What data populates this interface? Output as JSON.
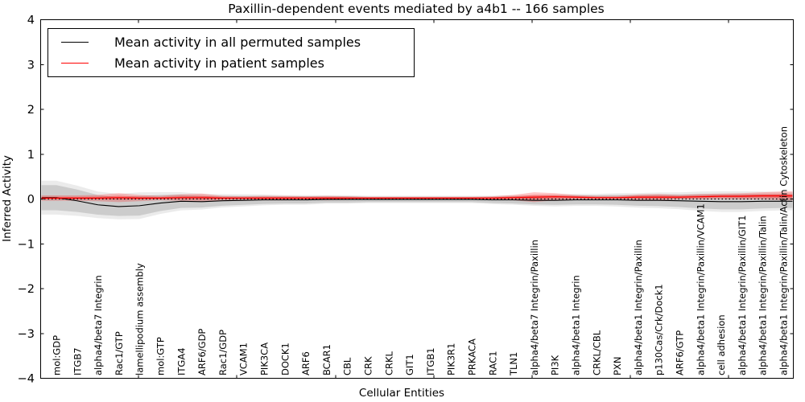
{
  "title": "Paxillin-dependent events mediated by a4b1 -- 166 samples",
  "axes": {
    "ylabel": "Inferred Activity",
    "xlabel": "Cellular Entities",
    "ytick_labels": [
      "4",
      "3",
      "2",
      "1",
      "0",
      "−1",
      "−2",
      "−3",
      "−4"
    ]
  },
  "legend": {
    "entries": [
      {
        "label": "Mean activity in all permuted samples",
        "color": "#000000"
      },
      {
        "label": "Mean activity in patient samples",
        "color": "#ff0000"
      }
    ]
  },
  "chart_data": {
    "type": "line",
    "title": "Paxillin-dependent events mediated by a4b1 -- 166 samples",
    "xlabel": "Cellular Entities",
    "ylabel": "Inferred Activity",
    "ylim": [
      -4,
      4
    ],
    "yticks": [
      4,
      3,
      2,
      1,
      0,
      -1,
      -2,
      -3,
      -4
    ],
    "grid": false,
    "legend_position": "upper left",
    "zero_line": {
      "style": "dotted",
      "color": "#000000",
      "y": 0
    },
    "categories": [
      "mol:GDP",
      "ITGB7",
      "alpha4/beta7 Integrin",
      "Rac1/GTP",
      "lamellipodium assembly",
      "mol:GTP",
      "ITGA4",
      "ARF6/GDP",
      "Rac1/GDP",
      "VCAM1",
      "PIK3CA",
      "DOCK1",
      "ARF6",
      "BCAR1",
      "CBL",
      "CRK",
      "CRKL",
      "GIT1",
      "ITGB1",
      "PIK3R1",
      "PRKACA",
      "RAC1",
      "TLN1",
      "alpha4/beta7 Integrin/Paxillin",
      "PI3K",
      "alpha4/beta1 Integrin",
      "CRKL/CBL",
      "PXN",
      "alpha4/beta1 Integrin/Paxillin",
      "p130Cas/Crk/Dock1",
      "ARF6/GTP",
      "alpha4/beta1 Integrin/Paxillin/VCAM1",
      "cell adhesion",
      "alpha4/beta1 Integrin/Paxillin/GIT1",
      "alpha4/beta1 Integrin/Paxillin/Talin",
      "alpha4/beta1 Integrin/Paxillin/Talin/Actin Cytoskeleton"
    ],
    "series": [
      {
        "name": "Mean activity in all permuted samples",
        "color": "#000000",
        "values": [
          0.03,
          -0.04,
          -0.13,
          -0.17,
          -0.15,
          -0.09,
          -0.05,
          -0.06,
          -0.04,
          -0.03,
          -0.02,
          -0.02,
          -0.02,
          -0.01,
          -0.01,
          -0.01,
          -0.01,
          -0.01,
          -0.01,
          -0.01,
          -0.01,
          -0.02,
          -0.02,
          -0.03,
          -0.03,
          -0.02,
          -0.02,
          -0.02,
          -0.03,
          -0.03,
          -0.04,
          -0.05,
          -0.06,
          -0.06,
          -0.05,
          -0.05
        ],
        "band_halfwidth": [
          0.28,
          0.25,
          0.22,
          0.21,
          0.22,
          0.18,
          0.15,
          0.13,
          0.11,
          0.1,
          0.09,
          0.08,
          0.08,
          0.07,
          0.07,
          0.06,
          0.06,
          0.06,
          0.06,
          0.06,
          0.06,
          0.07,
          0.08,
          0.09,
          0.1,
          0.1,
          0.1,
          0.11,
          0.12,
          0.13,
          0.14,
          0.16,
          0.17,
          0.17,
          0.16,
          0.15
        ],
        "band_color": "#aaaaaa"
      },
      {
        "name": "Mean activity in patient samples",
        "color": "#ff0000",
        "values": [
          0.02,
          0.02,
          0.02,
          0.03,
          0.02,
          0.02,
          0.03,
          0.03,
          0.02,
          0.02,
          0.02,
          0.02,
          0.02,
          0.02,
          0.02,
          0.02,
          0.02,
          0.02,
          0.02,
          0.02,
          0.02,
          0.02,
          0.03,
          0.04,
          0.05,
          0.04,
          0.03,
          0.03,
          0.04,
          0.04,
          0.04,
          0.05,
          0.06,
          0.06,
          0.07,
          0.07
        ],
        "band_halfwidth": [
          0.06,
          0.06,
          0.07,
          0.1,
          0.07,
          0.05,
          0.07,
          0.09,
          0.05,
          0.04,
          0.05,
          0.05,
          0.04,
          0.05,
          0.04,
          0.03,
          0.03,
          0.03,
          0.03,
          0.03,
          0.03,
          0.04,
          0.06,
          0.11,
          0.08,
          0.05,
          0.04,
          0.04,
          0.06,
          0.07,
          0.05,
          0.06,
          0.06,
          0.07,
          0.08,
          0.1
        ],
        "band_color": "#ff0000"
      }
    ]
  }
}
